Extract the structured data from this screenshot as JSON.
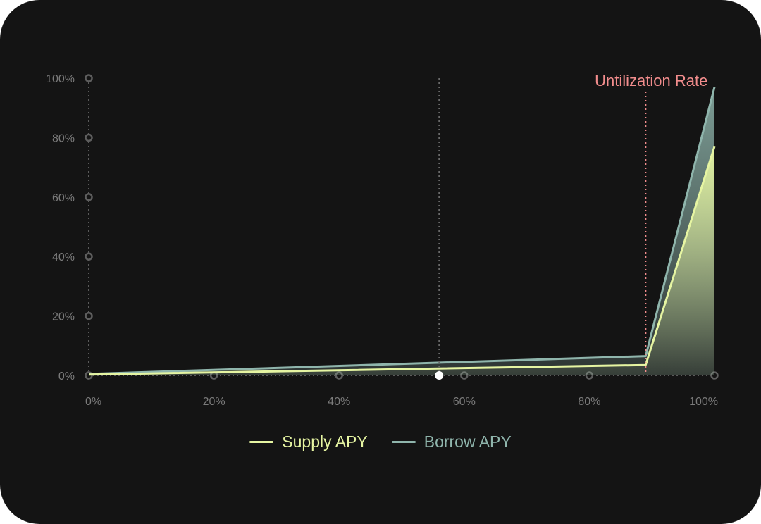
{
  "chart_data": {
    "type": "area",
    "x_ticks": [
      "0%",
      "20%",
      "40%",
      "60%",
      "80%",
      "100%"
    ],
    "y_ticks": [
      "0%",
      "20%",
      "40%",
      "60%",
      "80%",
      "100%"
    ],
    "xlim": [
      0,
      100
    ],
    "ylim": [
      0,
      100
    ],
    "series": [
      {
        "name": "Borrow APY",
        "color": "#8fb5ac",
        "x": [
          0,
          89,
          100
        ],
        "y": [
          0.5,
          6.5,
          97
        ]
      },
      {
        "name": "Supply APY",
        "color": "#e6f5a2",
        "x": [
          0,
          89,
          100
        ],
        "y": [
          0.3,
          3.5,
          77
        ]
      }
    ],
    "annotations": [
      {
        "label": "Untilization Rate",
        "x": 89,
        "color": "#f28d8d"
      }
    ],
    "current_marker": {
      "x": 56
    },
    "grid": false,
    "legend_position": "bottom"
  },
  "legend": {
    "supply_label": "Supply APY",
    "borrow_label": "Borrow APY",
    "supply_color": "#e6f5a2",
    "borrow_color": "#8fb5ac"
  }
}
